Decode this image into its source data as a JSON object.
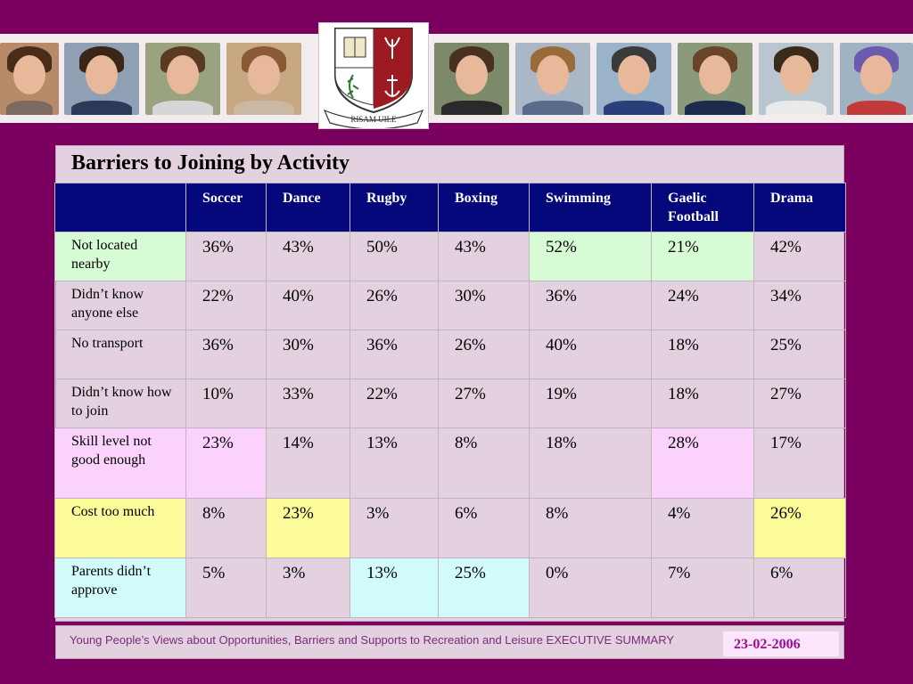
{
  "crest": {
    "motto": "RISAM UILE"
  },
  "table_title": "Barriers to Joining by Activity",
  "columns": [
    "",
    "Soccer",
    "Dance",
    "Rugby",
    "Boxing",
    "Swimming",
    "Gaelic Football",
    "Drama"
  ],
  "rows": [
    {
      "label": "Not located nearby",
      "values": [
        "36%",
        "43%",
        "50%",
        "43%",
        "52%",
        "21%",
        "42%"
      ]
    },
    {
      "label": "Didn’t know anyone else",
      "values": [
        "22%",
        "40%",
        "26%",
        "30%",
        "36%",
        "24%",
        "34%"
      ]
    },
    {
      "label": "No transport",
      "values": [
        "36%",
        "30%",
        "36%",
        "26%",
        "40%",
        "18%",
        "25%"
      ]
    },
    {
      "label": "Didn’t know how to join",
      "values": [
        "10%",
        "33%",
        "22%",
        "27%",
        "19%",
        "18%",
        "27%"
      ]
    },
    {
      "label": "Skill level not good enough",
      "values": [
        "23%",
        "14%",
        "13%",
        "8%",
        "18%",
        "28%",
        "17%"
      ]
    },
    {
      "label": "Cost too much",
      "values": [
        "8%",
        "23%",
        "3%",
        "6%",
        "8%",
        "4%",
        "26%"
      ]
    },
    {
      "label": "Parents didn’t approve",
      "values": [
        "5%",
        "3%",
        "13%",
        "25%",
        "0%",
        "7%",
        "6%"
      ]
    }
  ],
  "footer": {
    "text": "Young People’s Views about Opportunities, Barriers and Supports to Recreation and Leisure EXECUTIVE SUMMARY",
    "date": "23-02-2006"
  },
  "colors": {
    "background": "#7a0060",
    "header": "#05087a",
    "green": "#d6fbd5",
    "pink": "#fbd2fb",
    "yellow": "#fbfb9a",
    "cyan": "#d2fbfb"
  }
}
